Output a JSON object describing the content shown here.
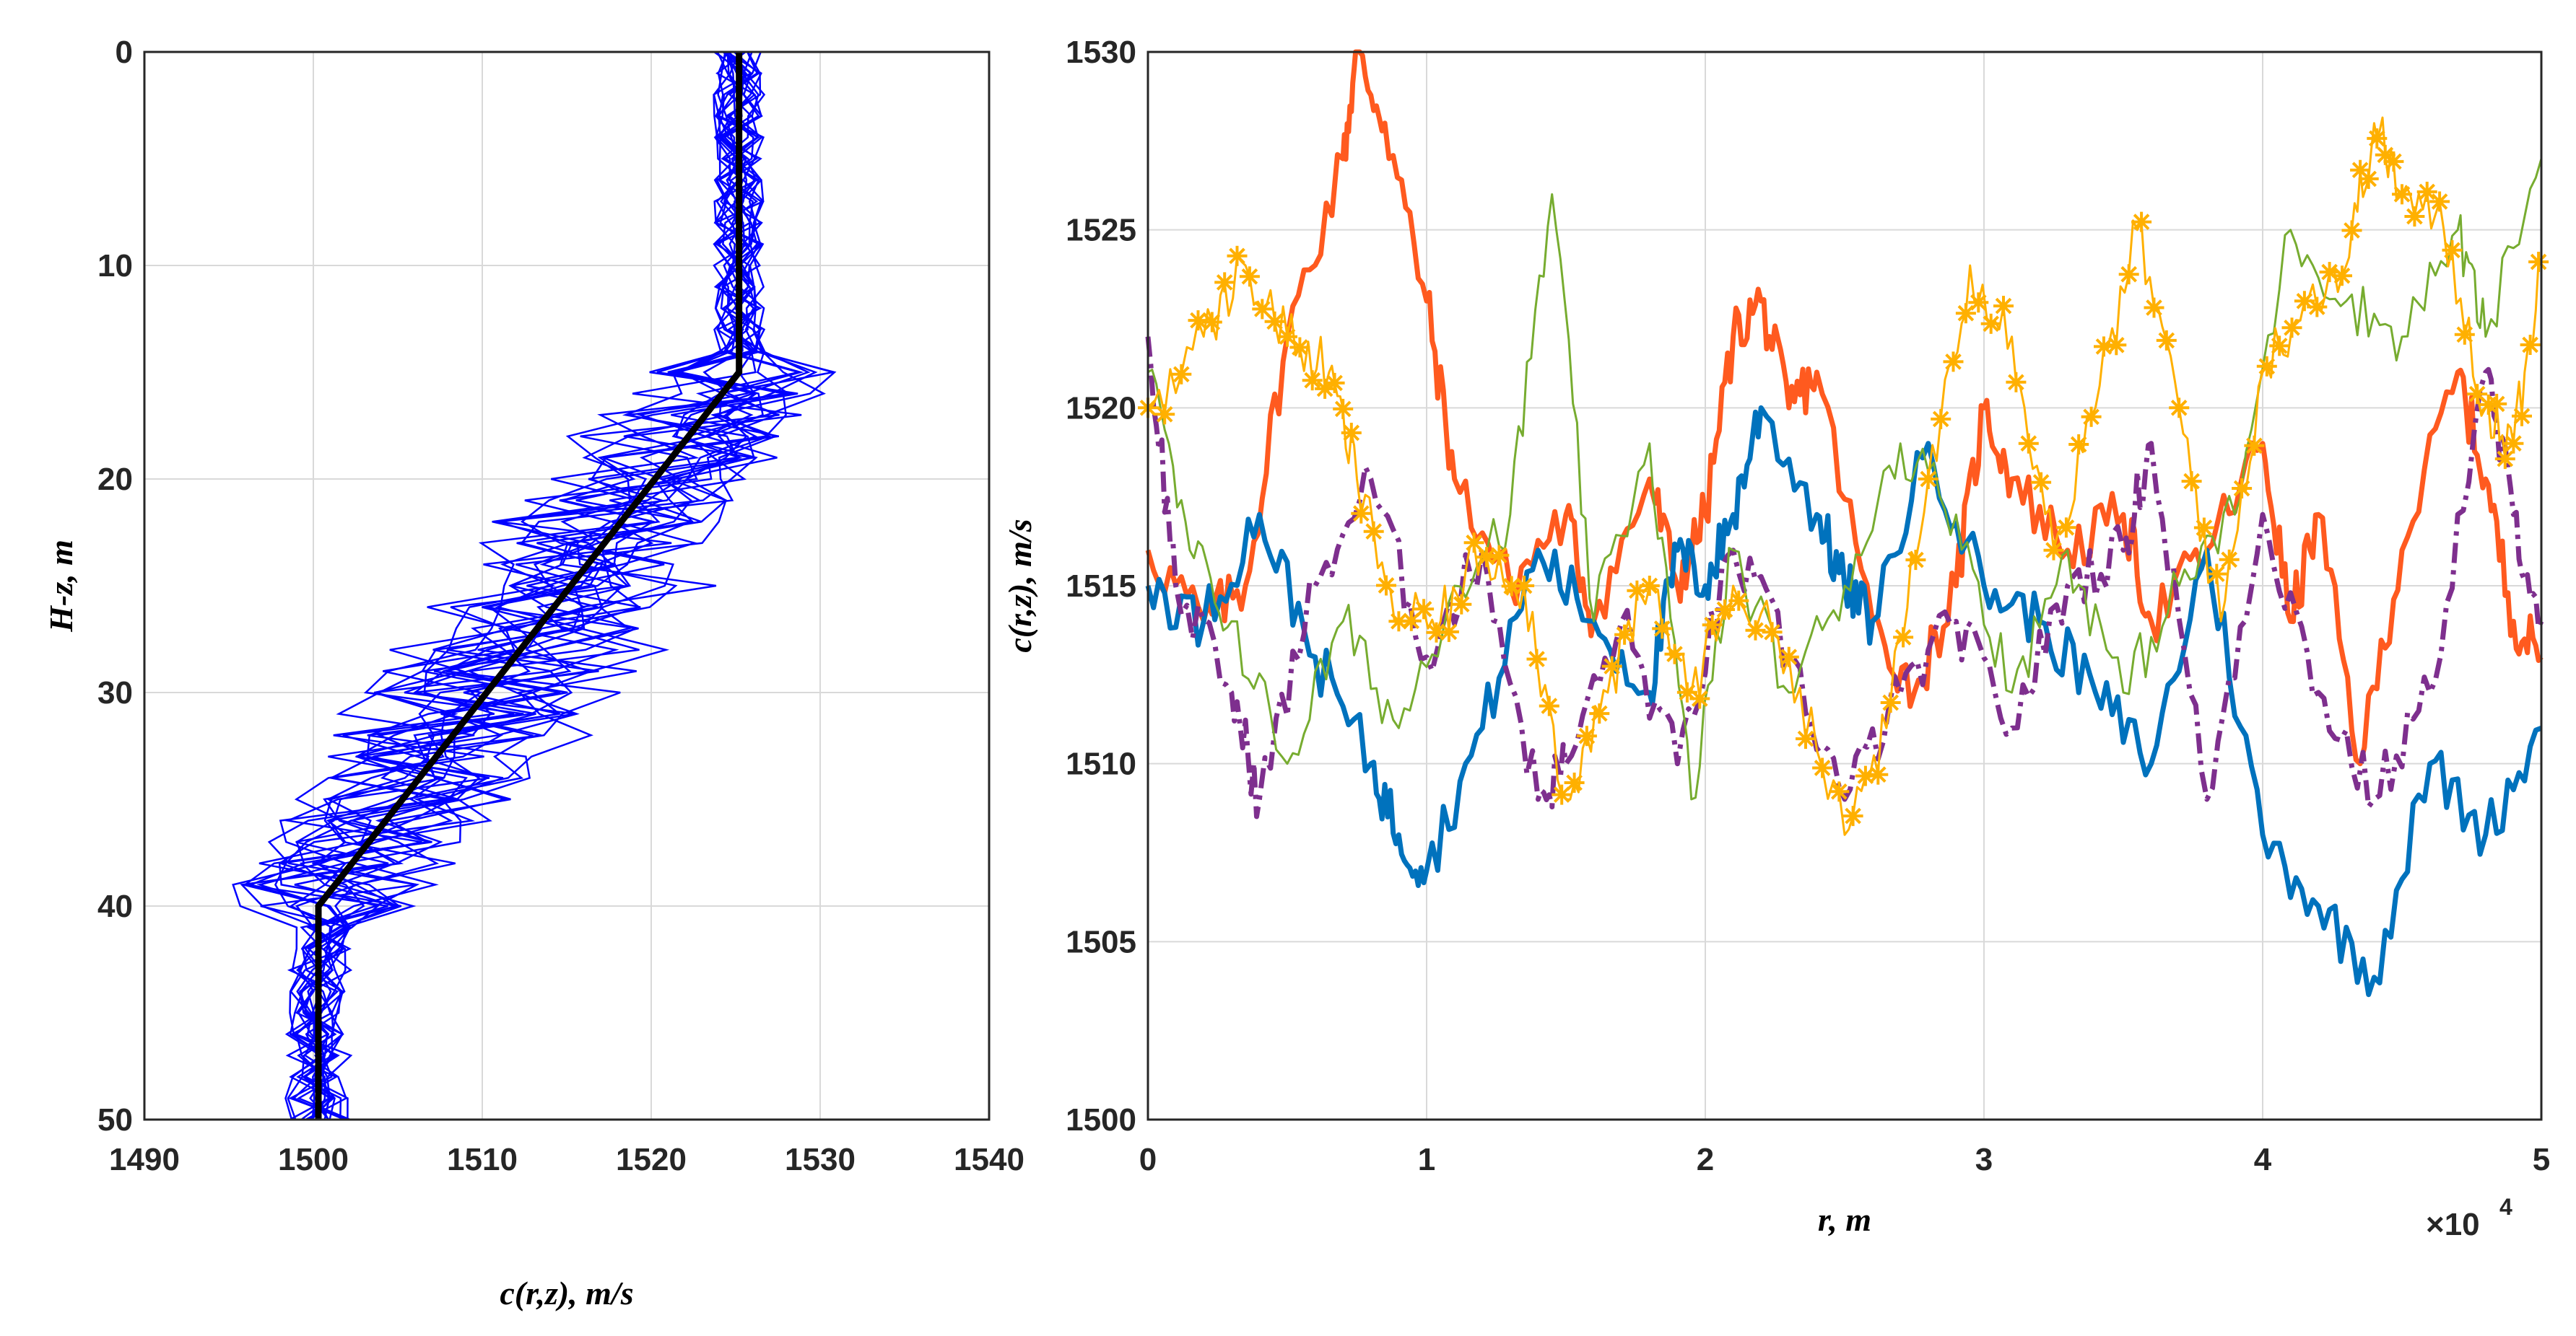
{
  "chart_data": [
    {
      "type": "line",
      "xlabel": "c(r,z), m/s",
      "ylabel": "H-z, m",
      "xlim": [
        1490,
        1540
      ],
      "ylim": [
        0,
        50
      ],
      "y_reversed": true,
      "x_ticks": [
        1490,
        1500,
        1510,
        1520,
        1530,
        1540
      ],
      "y_ticks": [
        0,
        10,
        20,
        30,
        40,
        50
      ],
      "grid": true,
      "mean_profile": {
        "color": "#000000",
        "points": [
          [
            1525.2,
            0
          ],
          [
            1525.2,
            15
          ],
          [
            1500.3,
            40
          ],
          [
            1500.3,
            50
          ]
        ]
      },
      "realizations": {
        "count": 20,
        "color": "#0000ff",
        "depth_step": 1,
        "surface_spread": 1.5,
        "thermocline_spread": 6,
        "bottom_spread": 2
      }
    },
    {
      "type": "line",
      "xlabel": "r, m",
      "ylabel": "c(r,z), m/s",
      "xlim": [
        0,
        5
      ],
      "ylim": [
        1500,
        1530
      ],
      "x_multiplier": "×10",
      "x_multiplier_exp": "4",
      "x_ticks": [
        0,
        1,
        2,
        3,
        4,
        5
      ],
      "y_ticks": [
        1500,
        1505,
        1510,
        1515,
        1520,
        1525,
        1530
      ],
      "grid": true,
      "series": [
        {
          "color": "#ff5a1f",
          "style": "solid-thick",
          "x": [
            0,
            0.2,
            0.35,
            0.5,
            0.7,
            0.75,
            0.85,
            1.0,
            1.1,
            1.3,
            1.5,
            1.6,
            1.8,
            1.9,
            2.0,
            2.1,
            2.2,
            2.3,
            2.4,
            2.6,
            2.75,
            2.9,
            3.0,
            3.1,
            3.3,
            3.5,
            3.6,
            3.8,
            4.0,
            4.1,
            4.2,
            4.35,
            4.5,
            4.7,
            4.8,
            4.9,
            5.0
          ],
          "y": [
            1516,
            1514,
            1515,
            1522,
            1527,
            1530,
            1528,
            1523,
            1518,
            1515,
            1517,
            1514,
            1518,
            1515,
            1517,
            1522,
            1523,
            1520,
            1521,
            1514,
            1512,
            1515,
            1520,
            1518,
            1516,
            1517,
            1514,
            1516,
            1519,
            1514,
            1517,
            1510,
            1516,
            1521,
            1518,
            1514,
            1513
          ]
        },
        {
          "color": "#0072bd",
          "style": "solid-thick",
          "x": [
            0,
            0.2,
            0.4,
            0.6,
            0.8,
            0.9,
            1.0,
            1.2,
            1.4,
            1.6,
            1.8,
            1.9,
            2.0,
            2.1,
            2.2,
            2.4,
            2.5,
            2.6,
            2.8,
            3.0,
            3.2,
            3.4,
            3.6,
            3.8,
            4.0,
            4.2,
            4.4,
            4.6,
            4.8,
            5.0
          ],
          "y": [
            1515,
            1514,
            1517,
            1513,
            1510,
            1508,
            1507,
            1511,
            1516,
            1514,
            1512,
            1516,
            1515,
            1517,
            1520,
            1517,
            1515,
            1514,
            1519,
            1515,
            1514,
            1512,
            1510,
            1516,
            1508,
            1506,
            1504,
            1510,
            1508,
            1511
          ]
        },
        {
          "color": "#7e2f8e",
          "style": "dashdot-thick",
          "x": [
            0,
            0.1,
            0.3,
            0.4,
            0.6,
            0.8,
            1.0,
            1.2,
            1.4,
            1.5,
            1.7,
            1.9,
            2.1,
            2.3,
            2.5,
            2.7,
            2.9,
            3.1,
            3.3,
            3.5,
            3.6,
            3.8,
            4.0,
            4.2,
            4.4,
            4.6,
            4.8,
            4.9,
            5.0
          ],
          "y": [
            1522,
            1515,
            1512,
            1509,
            1515,
            1518,
            1513,
            1516,
            1509,
            1510,
            1514,
            1510,
            1516,
            1513,
            1509,
            1512,
            1514,
            1511,
            1515,
            1516,
            1519,
            1509,
            1517,
            1512,
            1509,
            1512,
            1521,
            1517,
            1514
          ]
        },
        {
          "color": "#77ac30",
          "style": "solid-thin",
          "x": [
            0,
            0.15,
            0.3,
            0.5,
            0.7,
            0.9,
            1.1,
            1.3,
            1.45,
            1.6,
            1.8,
            1.95,
            2.1,
            2.3,
            2.5,
            2.7,
            2.9,
            3.1,
            3.3,
            3.5,
            3.7,
            3.9,
            4.1,
            4.3,
            4.5,
            4.7,
            4.8,
            5.0
          ],
          "y": [
            1521,
            1516,
            1514,
            1510,
            1514,
            1511,
            1515,
            1517,
            1526,
            1514,
            1519,
            1509,
            1516,
            1512,
            1515,
            1519,
            1517,
            1512,
            1516,
            1512,
            1515,
            1517,
            1525,
            1523,
            1522,
            1525,
            1522,
            1527
          ]
        },
        {
          "color": "#ffb000",
          "style": "solid-asterisk",
          "x": [
            0,
            0.2,
            0.35,
            0.5,
            0.65,
            0.75,
            0.9,
            1.05,
            1.2,
            1.35,
            1.5,
            1.65,
            1.8,
            1.95,
            2.1,
            2.3,
            2.5,
            2.65,
            2.8,
            2.95,
            3.1,
            3.25,
            3.4,
            3.55,
            3.7,
            3.85,
            4.0,
            4.15,
            4.3,
            4.4,
            4.5,
            4.65,
            4.8,
            4.9,
            5.0
          ],
          "y": [
            1520,
            1522,
            1524,
            1522,
            1521,
            1518,
            1514,
            1514,
            1516,
            1515,
            1509,
            1512,
            1515,
            1512,
            1515,
            1513,
            1508,
            1511,
            1518,
            1524,
            1522,
            1516,
            1520,
            1525,
            1520,
            1514,
            1521,
            1523,
            1524,
            1528,
            1526,
            1525,
            1520,
            1519,
            1524
          ]
        }
      ]
    }
  ]
}
